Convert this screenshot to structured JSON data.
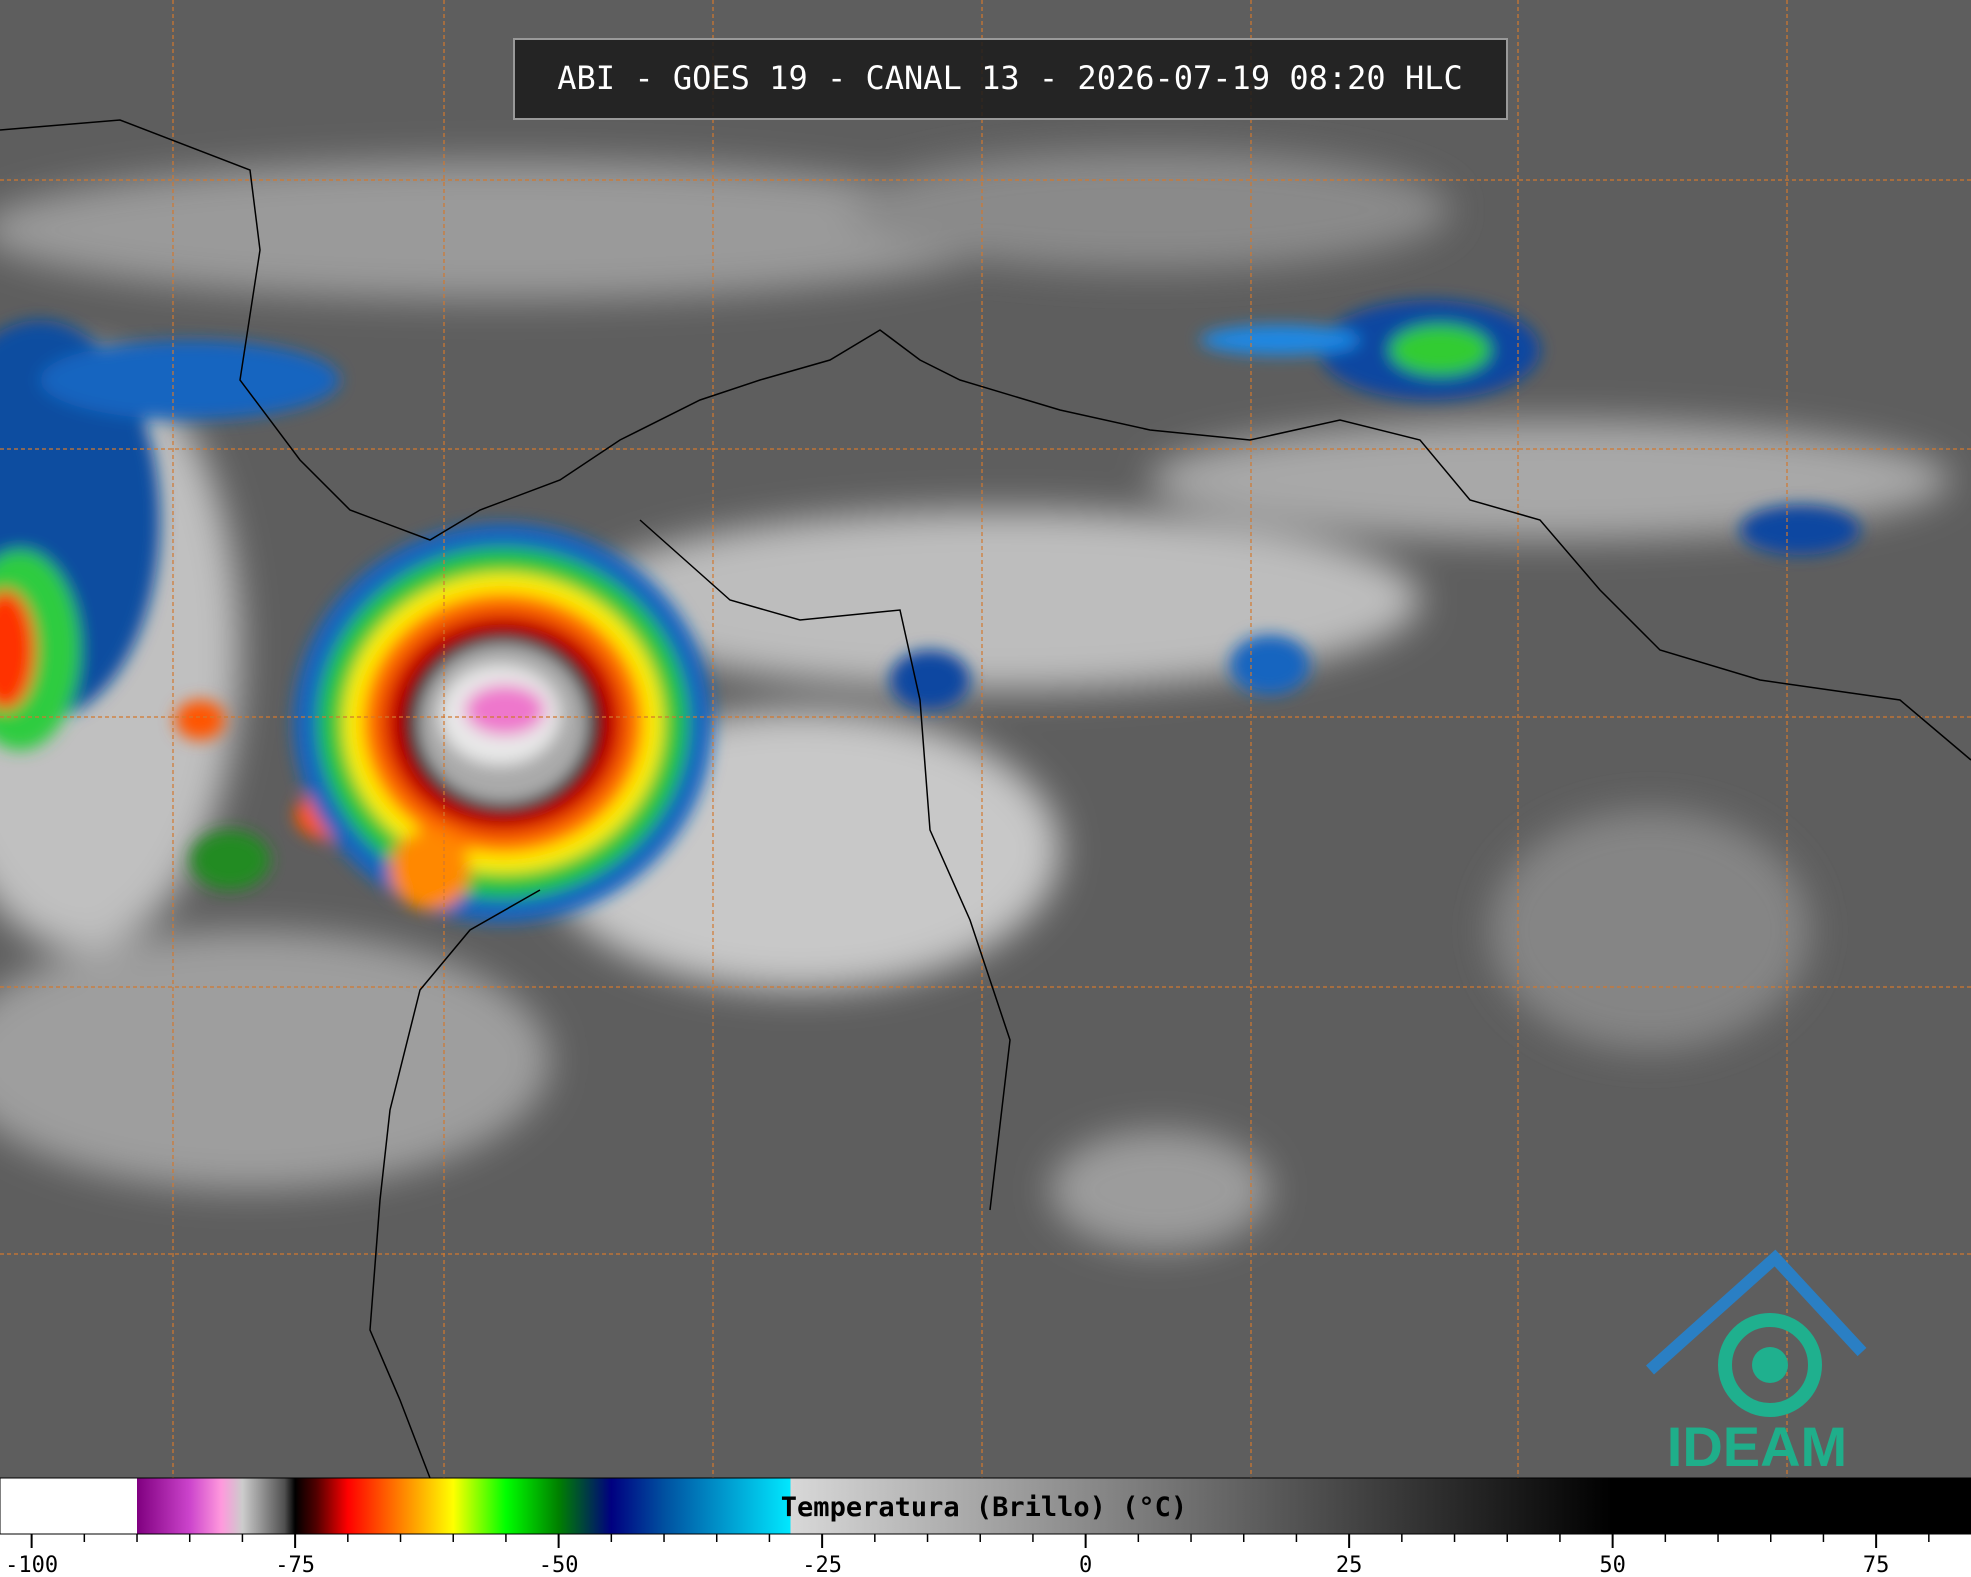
{
  "title": "ABI - GOES 19 - CANAL 13 - 2026-07-19 08:20 HLC",
  "logo": "IDEAM",
  "colorbar": {
    "label": "Temperatura (Brillo) (°C)",
    "xlim": [
      -103,
      84
    ],
    "ticks": [
      -100,
      -75,
      -50,
      -25,
      0,
      25,
      50,
      75
    ],
    "minor_ticks": [
      -95,
      -90,
      -85,
      -80,
      -70,
      -65,
      -60,
      -55,
      -45,
      -40,
      -35,
      -30,
      -20,
      -15,
      -10,
      -5,
      5,
      10,
      15,
      20,
      30,
      35,
      40,
      45,
      55,
      60,
      65,
      70,
      80
    ],
    "colormap": [
      {
        "value": -103,
        "color": "#ffffff"
      },
      {
        "value": -90,
        "color": "#ffffff"
      },
      {
        "value": -90,
        "color": "#800080"
      },
      {
        "value": -85,
        "color": "#cc44cc"
      },
      {
        "value": -82,
        "color": "#ff99dd"
      },
      {
        "value": -80,
        "color": "#cccccc"
      },
      {
        "value": -76,
        "color": "#505050"
      },
      {
        "value": -75,
        "color": "#000000"
      },
      {
        "value": -73,
        "color": "#500000"
      },
      {
        "value": -70,
        "color": "#ff0000"
      },
      {
        "value": -65,
        "color": "#ff8000"
      },
      {
        "value": -60,
        "color": "#ffff00"
      },
      {
        "value": -55,
        "color": "#00ff00"
      },
      {
        "value": -50,
        "color": "#008000"
      },
      {
        "value": -45,
        "color": "#000080"
      },
      {
        "value": -40,
        "color": "#0050a0"
      },
      {
        "value": -28,
        "color": "#00e8ff"
      },
      {
        "value": -28,
        "color": "#d8d8d8"
      },
      {
        "value": 50,
        "color": "#000000"
      },
      {
        "value": 84,
        "color": "#000000"
      }
    ]
  }
}
